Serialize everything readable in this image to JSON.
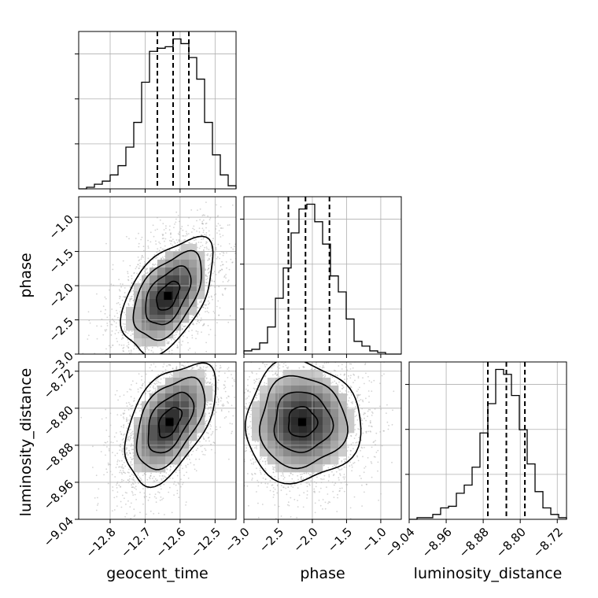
{
  "chart_data": {
    "type": "corner",
    "parameters": [
      "geocent_time",
      "phase",
      "luminosity_distance"
    ],
    "axes": {
      "geocent_time": {
        "range": [
          -12.89,
          -12.44
        ],
        "ticks": [
          -12.8,
          -12.7,
          -12.6,
          -12.5
        ],
        "tick_labels": [
          "−12.8",
          "−12.7",
          "−12.6",
          "−12.5"
        ]
      },
      "phase": {
        "range": [
          -3.0,
          -0.7
        ],
        "ticks": [
          -3.0,
          -2.5,
          -2.0,
          -1.5,
          -1.0
        ],
        "tick_labels": [
          "−3.0",
          "−2.5",
          "−2.0",
          "−1.5",
          "−1.0"
        ]
      },
      "luminosity_distance": {
        "range": [
          -9.04,
          -8.7
        ],
        "ticks": [
          -9.04,
          -8.96,
          -8.88,
          -8.8,
          -8.72
        ],
        "tick_labels": [
          "−9.04",
          "−8.96",
          "−8.88",
          "−8.80",
          "−8.72"
        ]
      }
    },
    "marginals": {
      "geocent_time": {
        "quantiles": [
          -12.665,
          -12.62,
          -12.575
        ],
        "bin_edges": [
          -12.89,
          -12.8675,
          -12.845,
          -12.8225,
          -12.8,
          -12.7775,
          -12.755,
          -12.7325,
          -12.71,
          -12.6875,
          -12.665,
          -12.6425,
          -12.62,
          -12.5975,
          -12.575,
          -12.5525,
          -12.53,
          -12.5075,
          -12.485,
          -12.4625,
          -12.44
        ],
        "counts": [
          0,
          1,
          3,
          5,
          9,
          15,
          27,
          43,
          69,
          89,
          91,
          92,
          97,
          94,
          85,
          71,
          43,
          22,
          9,
          2
        ]
      },
      "phase": {
        "quantiles": [
          -2.35,
          -2.1,
          -1.75
        ],
        "bin_edges": [
          -3.0,
          -2.885,
          -2.77,
          -2.655,
          -2.54,
          -2.425,
          -2.31,
          -2.195,
          -2.08,
          -1.965,
          -1.85,
          -1.735,
          -1.62,
          -1.505,
          -1.39,
          -1.275,
          -1.16,
          -1.045,
          -0.93,
          -0.815,
          -0.7
        ],
        "counts": [
          2,
          3,
          7,
          17,
          35,
          54,
          76,
          91,
          94,
          83,
          69,
          49,
          39,
          22,
          8,
          5,
          2,
          1,
          0,
          0
        ]
      },
      "luminosity_distance": {
        "quantiles": [
          -8.87,
          -8.83,
          -8.79
        ],
        "bin_edges": [
          -9.04,
          -9.023,
          -9.006,
          -8.989,
          -8.972,
          -8.955,
          -8.938,
          -8.921,
          -8.904,
          -8.887,
          -8.87,
          -8.853,
          -8.836,
          -8.819,
          -8.802,
          -8.785,
          -8.768,
          -8.751,
          -8.734,
          -8.717,
          -8.7
        ],
        "counts": [
          0,
          1,
          1,
          3,
          7,
          8,
          16,
          21,
          32,
          53,
          71,
          92,
          89,
          76,
          55,
          34,
          17,
          7,
          3,
          1
        ]
      }
    },
    "pairs": [
      {
        "x": "geocent_time",
        "y": "phase",
        "center": [
          -12.635,
          -2.15
        ],
        "sigma": [
          0.065,
          0.42
        ],
        "correlation": 0.5
      },
      {
        "x": "geocent_time",
        "y": "luminosity_distance",
        "center": [
          -12.63,
          -8.83
        ],
        "sigma": [
          0.065,
          0.065
        ],
        "correlation": 0.5
      },
      {
        "x": "phase",
        "y": "luminosity_distance",
        "center": [
          -2.15,
          -8.83
        ],
        "sigma": [
          0.42,
          0.065
        ],
        "correlation": 0.0
      }
    ],
    "contour_levels_sigma": [
      0.5,
      1.0,
      1.5,
      2.0
    ],
    "grid": true
  }
}
